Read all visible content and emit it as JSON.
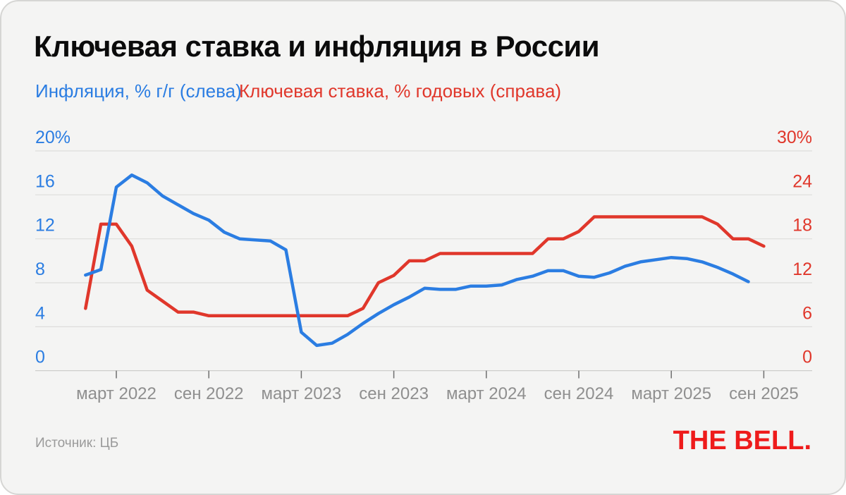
{
  "title": "Ключевая ставка и инфляция в России",
  "legend": {
    "inflation": {
      "label": "Инфляция, % г/г (слева)",
      "color": "#2b7de2"
    },
    "key_rate": {
      "label": "Ключевая ставка, % годовых (справа)",
      "color": "#e0372b"
    }
  },
  "footer": {
    "source": "Источник: ЦБ",
    "logo": "THE BELL."
  },
  "chart_data": {
    "type": "line",
    "title": "Ключевая ставка и инфляция в России",
    "grid": "horizontal",
    "x_start": "январь 2022",
    "x_end": "сентябрь 2025",
    "x_tick_labels": [
      "март 2022",
      "сен 2022",
      "март 2023",
      "сен 2023",
      "март 2024",
      "сен 2024",
      "март 2025",
      "сен 2025"
    ],
    "left_axis": {
      "label": "Инфляция, % г/г",
      "tick_labels": [
        "20%",
        "16",
        "12",
        "8",
        "4",
        "0"
      ],
      "tick_values": [
        20,
        16,
        12,
        8,
        4,
        0
      ],
      "range": [
        0,
        20
      ],
      "color": "#2b7de2"
    },
    "right_axis": {
      "label": "Ключевая ставка, % годовых",
      "tick_labels": [
        "30%",
        "24",
        "18",
        "12",
        "6",
        "0"
      ],
      "tick_values": [
        30,
        24,
        18,
        12,
        6,
        0
      ],
      "range": [
        0,
        30
      ],
      "color": "#e0372b"
    },
    "series": [
      {
        "name": "Ключевая ставка, % годовых",
        "axis": "right",
        "color": "#e0372b",
        "monthly_values": [
          8.5,
          20,
          20,
          17,
          11,
          9.5,
          8,
          8,
          7.5,
          7.5,
          7.5,
          7.5,
          7.5,
          7.5,
          7.5,
          7.5,
          7.5,
          7.5,
          8.5,
          12,
          13,
          15,
          15,
          16,
          16,
          16,
          16,
          16,
          16,
          16,
          18,
          18,
          19,
          21,
          21,
          21,
          21,
          21,
          21,
          21,
          21,
          20,
          18,
          18,
          17
        ]
      },
      {
        "name": "Инфляция, % г/г",
        "axis": "left",
        "color": "#2b7de2",
        "monthly_values": [
          8.7,
          9.2,
          16.7,
          17.8,
          17.1,
          15.9,
          15.1,
          14.3,
          13.7,
          12.6,
          12.0,
          11.9,
          11.8,
          11.0,
          3.5,
          2.3,
          2.5,
          3.3,
          4.3,
          5.2,
          6.0,
          6.7,
          7.5,
          7.4,
          7.4,
          7.7,
          7.7,
          7.8,
          8.3,
          8.6,
          9.1,
          9.1,
          8.6,
          8.5,
          8.9,
          9.5,
          9.9,
          10.1,
          10.3,
          10.2,
          9.9,
          9.4,
          8.8,
          8.1
        ]
      }
    ],
    "style": {
      "background": "#f4f4f3",
      "gridline_color": "#dedddb",
      "axisline_color": "#c9c9c7",
      "x_label_color": "#8f8f8f",
      "line_width": 4.5
    }
  }
}
